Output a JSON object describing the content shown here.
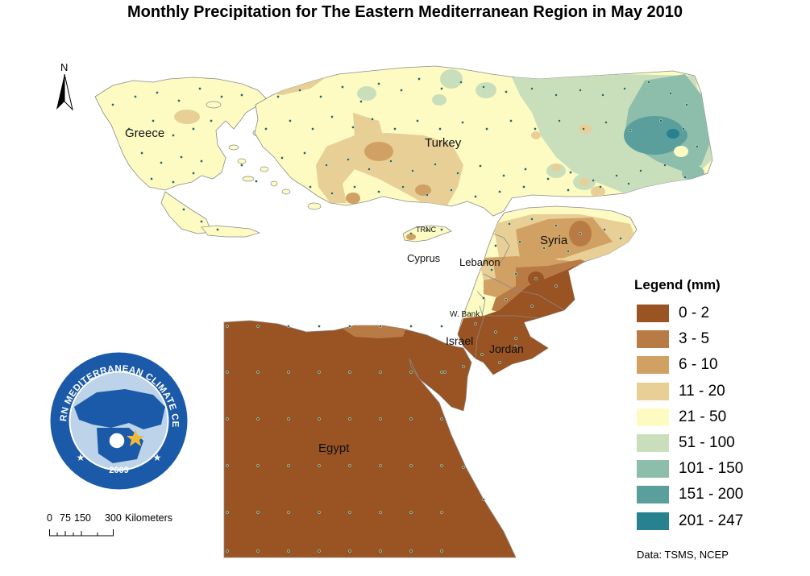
{
  "title": "Monthly Precipitation for The Eastern Mediterranean Region in May 2010",
  "north_arrow": {
    "letter": "N"
  },
  "country_labels": {
    "greece": "Greece",
    "turkey": "Turkey",
    "trnc": "TRNC",
    "cyprus": "Cyprus",
    "lebanon": "Lebanon",
    "syria": "Syria",
    "w_bank": "W. Bank",
    "israel": "Israel",
    "jordan": "Jordan",
    "egypt": "Egypt"
  },
  "legend": {
    "title": "Legend (mm)",
    "items": [
      {
        "label": "0 - 2",
        "color": "#9a5323"
      },
      {
        "label": "3 - 5",
        "color": "#b97b45"
      },
      {
        "label": "6 - 10",
        "color": "#d1a063"
      },
      {
        "label": "11 - 20",
        "color": "#e8cf96"
      },
      {
        "label": "21 - 50",
        "color": "#fdfbc2"
      },
      {
        "label": "51 - 100",
        "color": "#c9dfbb"
      },
      {
        "label": "101 - 150",
        "color": "#8dbdab"
      },
      {
        "label": "151 - 200",
        "color": "#5a9f9c"
      },
      {
        "label": "201 - 247",
        "color": "#27818f"
      }
    ]
  },
  "scale_bar": {
    "tick_labels": [
      "0",
      "75",
      "150",
      "300"
    ],
    "unit": "Kilometers"
  },
  "logo": {
    "text": "EASTERN MEDITERRANEAN CLIMATE CENTRE",
    "year": "2009"
  },
  "source": "Data:  TSMS, NCEP",
  "colors": {
    "sea": "#ffffff",
    "outline": "#8a8a8a",
    "station_dot": "#1e6a6e",
    "logo_blue": "#1a5aa8"
  }
}
